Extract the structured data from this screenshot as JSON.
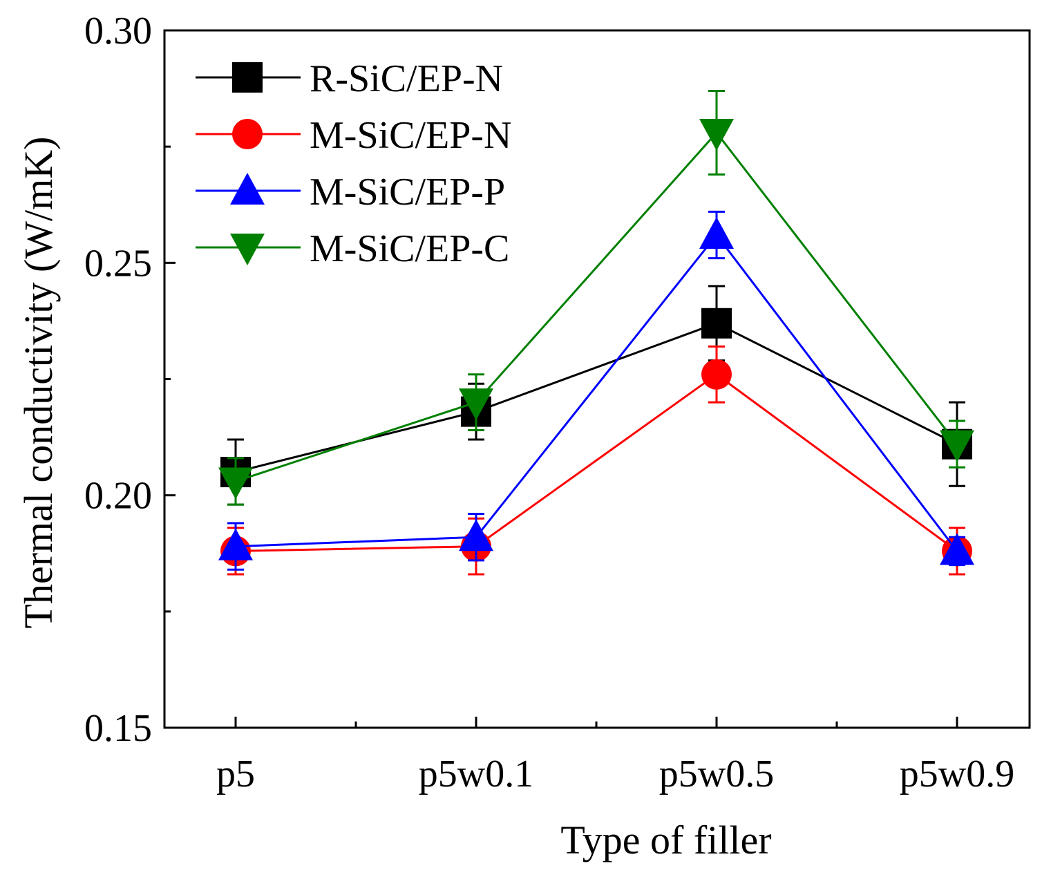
{
  "chart_data": {
    "type": "line",
    "xlabel": "Type of filler",
    "ylabel": "Thermal conductivity (W/mK)",
    "categories": [
      "p5",
      "p5w0.1",
      "p5w0.5",
      "p5w0.9"
    ],
    "ylim": [
      0.15,
      0.3
    ],
    "y_ticks": [
      0.15,
      0.2,
      0.25,
      0.3
    ],
    "y_tick_labels": [
      "0.15",
      "0.20",
      "0.25",
      "0.30"
    ],
    "legend_position": "top-left",
    "grid": false,
    "series": [
      {
        "name": "R-SiC/EP-N",
        "color": "#000000",
        "marker": "square",
        "values": [
          0.205,
          0.218,
          0.237,
          0.211
        ],
        "errors": [
          0.007,
          0.006,
          0.008,
          0.009
        ]
      },
      {
        "name": "M-SiC/EP-N",
        "color": "#ff0000",
        "marker": "circle",
        "values": [
          0.188,
          0.189,
          0.226,
          0.188
        ],
        "errors": [
          0.005,
          0.006,
          0.006,
          0.005
        ]
      },
      {
        "name": "M-SiC/EP-P",
        "color": "#0000ff",
        "marker": "triangle-up",
        "values": [
          0.189,
          0.191,
          0.256,
          0.188
        ],
        "errors": [
          0.005,
          0.005,
          0.005,
          0.003
        ]
      },
      {
        "name": "M-SiC/EP-C",
        "color": "#008000",
        "marker": "triangle-down",
        "values": [
          0.203,
          0.22,
          0.278,
          0.211
        ],
        "errors": [
          0.005,
          0.006,
          0.009,
          0.005
        ]
      }
    ]
  }
}
